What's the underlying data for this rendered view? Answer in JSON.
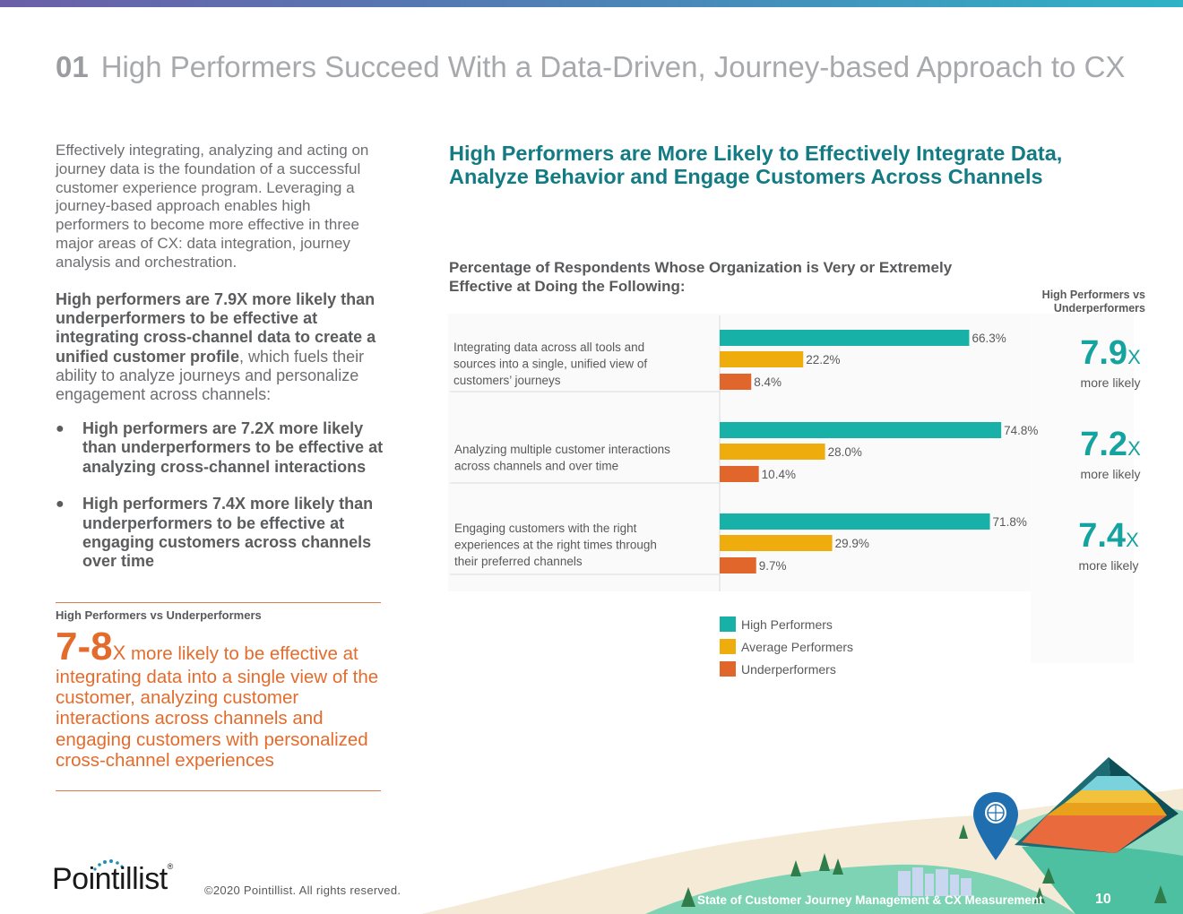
{
  "header": {
    "section_number": "01",
    "title": "High Performers Succeed With a Data-Driven, Journey-based Approach to CX"
  },
  "left": {
    "intro": "Effectively integrating, analyzing and acting on journey data is the foundation of a successful customer experience program. Leveraging a journey-based approach enables high performers to become more effective in three major areas of CX: data integration, journey analysis and orchestration.",
    "para2_bold": "High performers are 7.9X more likely than underperformers to be effective at integrating cross-channel data to create a unified customer profile",
    "para2_rest": ", which fuels their ability to analyze journeys and personalize engagement across channels:",
    "bullets": [
      "High performers are 7.2X more likely than underperformers to be effective at analyzing cross-channel interactions",
      "High performers 7.4X more likely than underperformers to be effective at engaging customers across channels over time"
    ],
    "callout_label": "High Performers vs Underperformers",
    "callout_big": "7-8",
    "callout_x": "X",
    "callout_text": " more likely to be effective at integrating data into a single view of the customer, analyzing customer interactions across channels and engaging customers with personalized cross-channel experiences"
  },
  "chart_title": "High Performers are More Likely to Effectively Integrate Data, Analyze Behavior and Engage Customers Across Channels",
  "chart_subtitle": "Percentage of Respondents Whose Organization is Very or Extremely Effective at Doing the Following:",
  "ratio_header": "High Performers vs Underperformers",
  "ratios": [
    {
      "value": "7.9",
      "x": "X",
      "label": "more likely"
    },
    {
      "value": "7.2",
      "x": "X",
      "label": "more likely"
    },
    {
      "value": "7.4",
      "x": "X",
      "label": "more likely"
    }
  ],
  "chart_data": {
    "type": "bar",
    "orientation": "horizontal",
    "categories": [
      "Integrating data across all tools and sources into a single, unified view of customers' journeys",
      "Analyzing multiple customer interactions across channels and over time",
      "Engaging customers with the right experiences at the right times through their preferred channels"
    ],
    "series": [
      {
        "name": "High Performers",
        "color": "#17b1a8",
        "values": [
          66.3,
          74.8,
          71.8
        ],
        "labels": [
          "66.3%",
          "74.8%",
          "71.8%"
        ]
      },
      {
        "name": "Average Performers",
        "color": "#eeac0d",
        "values": [
          22.2,
          28.0,
          29.9
        ],
        "labels": [
          "22.2%",
          "28.0%",
          "29.9%"
        ]
      },
      {
        "name": "Underperformers",
        "color": "#e0662b",
        "values": [
          8.4,
          10.4,
          9.7
        ],
        "labels": [
          "8.4%",
          "10.4%",
          "9.7%"
        ]
      }
    ],
    "xlim": [
      0,
      100
    ],
    "legend_position": "bottom"
  },
  "footer": {
    "logo": "Pointillist",
    "logo_mark": "®",
    "copyright": "©2020 Pointillist. All rights reserved.",
    "report_title": "State of Customer Journey Management & CX Measurement",
    "page_number": "10"
  }
}
